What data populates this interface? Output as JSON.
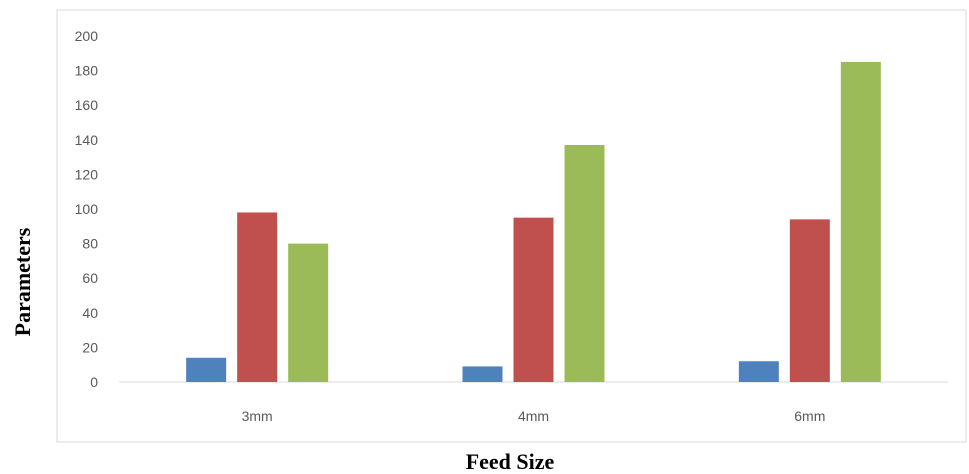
{
  "chart_data": {
    "type": "bar",
    "title": "",
    "xlabel": "Feed Size",
    "ylabel": "Parameters",
    "categories": [
      "3mm",
      "4mm",
      "6mm"
    ],
    "series": [
      {
        "values": [
          14,
          9,
          12
        ],
        "color": "#4f81bd"
      },
      {
        "values": [
          98,
          95,
          94
        ],
        "color": "#c0504d"
      },
      {
        "values": [
          80,
          137,
          185
        ],
        "color": "#9bbb59"
      }
    ],
    "ylim": [
      0,
      200
    ],
    "yticks": [
      0,
      20,
      40,
      60,
      80,
      100,
      120,
      140,
      160,
      180,
      200
    ],
    "grid": false,
    "legend": "none"
  }
}
